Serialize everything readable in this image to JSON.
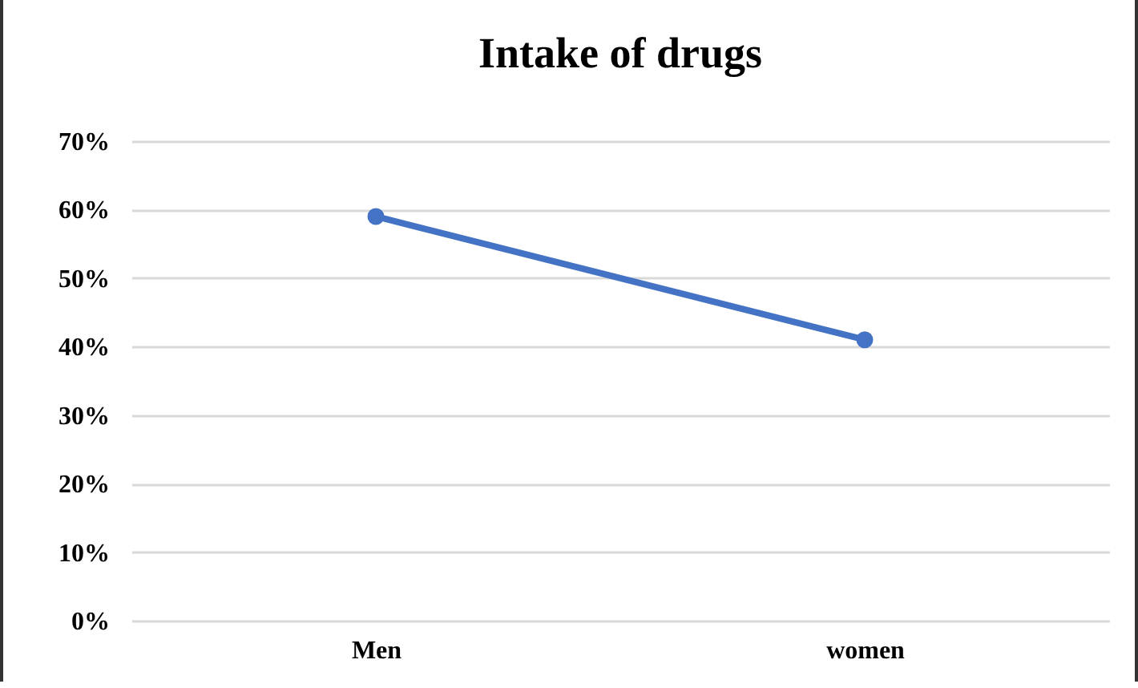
{
  "chart_data": {
    "type": "line",
    "title": "Intake of drugs",
    "categories": [
      "Men",
      "women"
    ],
    "series": [
      {
        "color": "#4472c4",
        "values": [
          59,
          41
        ]
      }
    ],
    "ylim": [
      0,
      70
    ],
    "yticks": [
      {
        "value": 0,
        "label": "0%"
      },
      {
        "value": 10,
        "label": "10%"
      },
      {
        "value": 20,
        "label": "20%"
      },
      {
        "value": 30,
        "label": "30%"
      },
      {
        "value": 40,
        "label": "40%"
      },
      {
        "value": 50,
        "label": "50%"
      },
      {
        "value": 60,
        "label": "60%"
      },
      {
        "value": 70,
        "label": "70%"
      }
    ],
    "grid": "y",
    "marker": "circle",
    "line_style": "solid"
  }
}
